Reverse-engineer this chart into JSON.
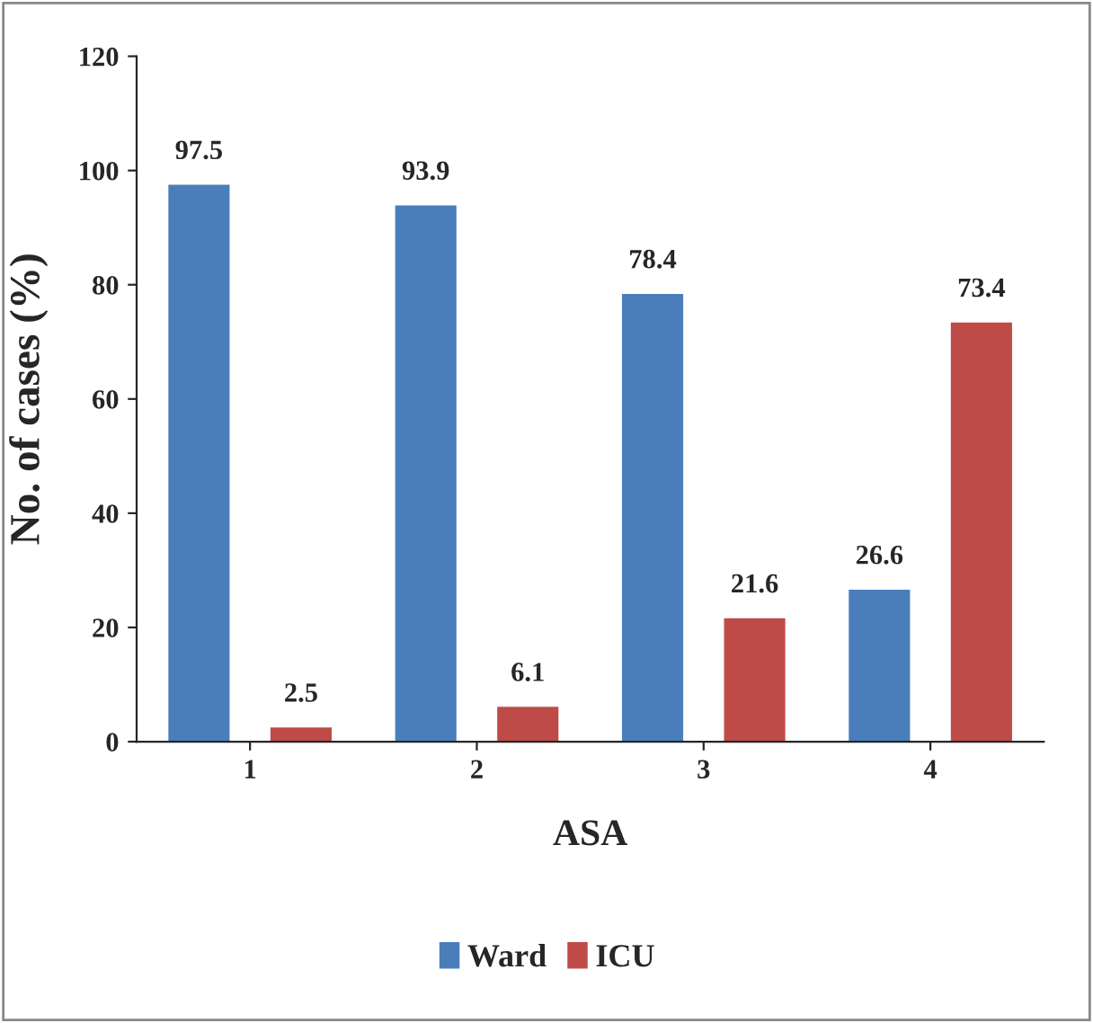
{
  "chart_data": {
    "type": "bar",
    "xlabel": "ASA",
    "ylabel": "No. of cases (%)",
    "categories": [
      "1",
      "2",
      "3",
      "4"
    ],
    "series": [
      {
        "name": "Ward",
        "color": "#4a7ebb",
        "values": [
          97.5,
          93.9,
          78.4,
          26.6
        ]
      },
      {
        "name": "ICU",
        "color": "#be4b48",
        "values": [
          2.5,
          6.1,
          21.6,
          73.4
        ]
      }
    ],
    "ylim": [
      0,
      120
    ],
    "yticks": [
      0,
      20,
      40,
      60,
      80,
      100,
      120
    ],
    "grid": false,
    "legend": "bottom",
    "data_labels": true
  }
}
